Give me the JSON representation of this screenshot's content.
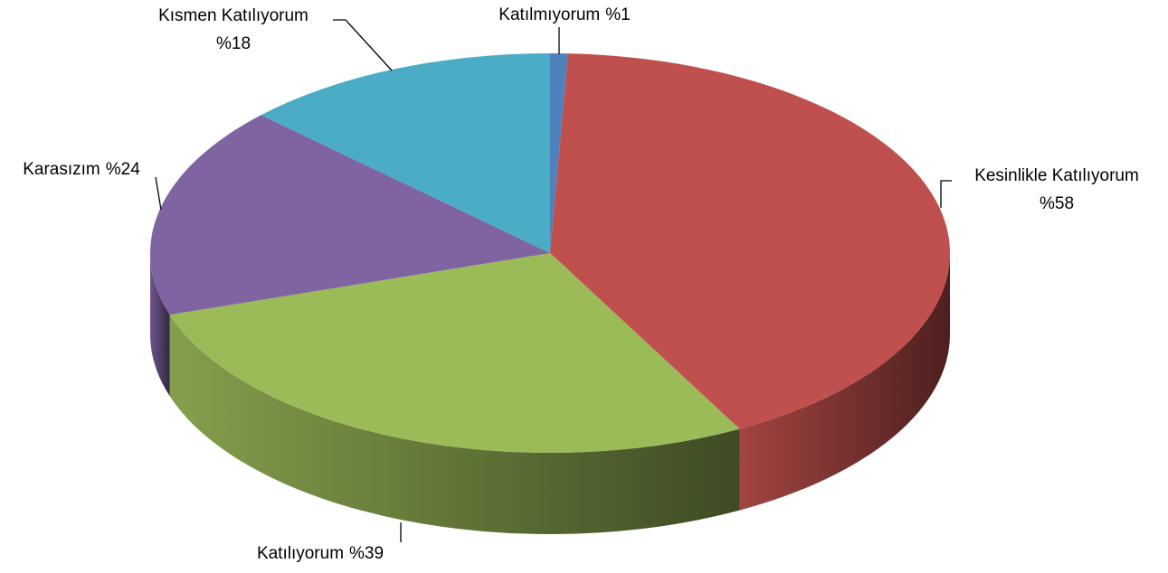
{
  "chart_data": {
    "type": "pie3d",
    "categories": [
      "Katılmıyorum",
      "Kesinlikle Katılıyorum",
      "Katılıyorum",
      "Karasızım",
      "Kısmen Katılıyorum"
    ],
    "values": [
      1,
      58,
      39,
      24,
      18
    ],
    "value_labels": [
      "%1",
      "%58",
      "%39",
      "%24",
      "%18"
    ],
    "colors": [
      "#4f81bd",
      "#c0504d",
      "#9bbb59",
      "#8064a2",
      "#4bacc6"
    ]
  }
}
